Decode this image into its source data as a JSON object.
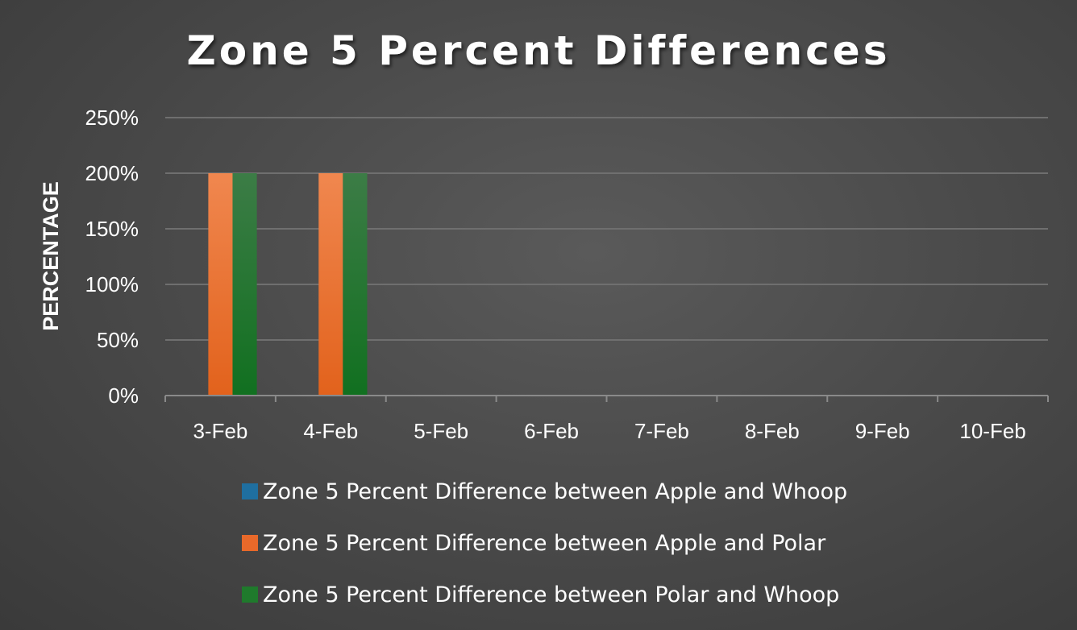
{
  "chart_data": {
    "type": "bar",
    "title": "Zone 5 Percent Differences",
    "xlabel": "",
    "ylabel": "PERCENTAGE",
    "ylim": [
      0,
      2.5
    ],
    "yticks": [
      "0%",
      "50%",
      "100%",
      "150%",
      "200%",
      "250%"
    ],
    "ytick_values": [
      0,
      0.5,
      1.0,
      1.5,
      2.0,
      2.5
    ],
    "categories": [
      "3-Feb",
      "4-Feb",
      "5-Feb",
      "6-Feb",
      "7-Feb",
      "8-Feb",
      "9-Feb",
      "10-Feb"
    ],
    "series": [
      {
        "name": "Zone 5 Percent Difference between Apple and Whoop",
        "color": "#1f6fa0",
        "values": [
          0,
          0,
          0,
          0,
          0,
          0,
          0,
          0
        ]
      },
      {
        "name": "Zone 5 Percent Difference between Apple and Polar",
        "color": "#e8692a",
        "values": [
          2.0,
          2.0,
          0,
          0,
          0,
          0,
          0,
          0
        ]
      },
      {
        "name": "Zone 5 Percent Difference between Polar and Whoop",
        "color": "#1f7a2c",
        "values": [
          2.0,
          2.0,
          0,
          0,
          0,
          0,
          0,
          0
        ]
      }
    ],
    "grid": true,
    "legend_position": "bottom"
  }
}
